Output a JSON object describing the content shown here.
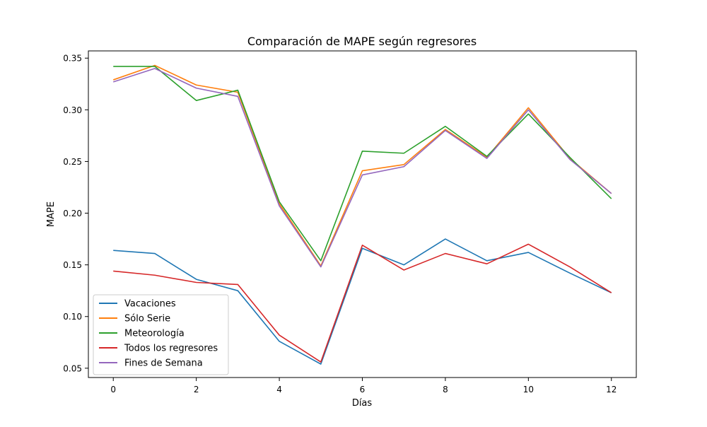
{
  "chart_data": {
    "type": "line",
    "title": "Comparación de MAPE según regresores",
    "xlabel": "Días",
    "ylabel": "MAPE",
    "xlim": [
      -0.6,
      12.6
    ],
    "ylim": [
      0.041,
      0.357
    ],
    "xticks": [
      0,
      2,
      4,
      6,
      8,
      10,
      12
    ],
    "yticks": [
      0.05,
      0.1,
      0.15,
      0.2,
      0.25,
      0.3,
      0.35
    ],
    "ytick_labels": [
      "0.05",
      "0.10",
      "0.15",
      "0.20",
      "0.25",
      "0.30",
      "0.35"
    ],
    "grid": false,
    "legend_position": "lower-left",
    "x": [
      0,
      1,
      2,
      3,
      4,
      5,
      6,
      7,
      8,
      9,
      10,
      11,
      12
    ],
    "series": [
      {
        "name": "Vacaciones",
        "color": "#1f77b4",
        "values": [
          0.164,
          0.161,
          0.136,
          0.125,
          0.076,
          0.054,
          0.166,
          0.15,
          0.175,
          0.154,
          0.162,
          0.142,
          0.123
        ]
      },
      {
        "name": "Sólo Serie",
        "color": "#ff7f0e",
        "values": [
          0.329,
          0.343,
          0.324,
          0.317,
          0.209,
          0.149,
          0.241,
          0.247,
          0.281,
          0.254,
          0.302,
          0.253,
          0.219
        ]
      },
      {
        "name": "Meteorología",
        "color": "#2ca02c",
        "values": [
          0.342,
          0.342,
          0.309,
          0.319,
          0.211,
          0.154,
          0.26,
          0.258,
          0.284,
          0.255,
          0.296,
          0.254,
          0.214
        ]
      },
      {
        "name": "Todos los regresores",
        "color": "#d62728",
        "values": [
          0.144,
          0.14,
          0.133,
          0.131,
          0.082,
          0.056,
          0.169,
          0.145,
          0.161,
          0.151,
          0.17,
          0.148,
          0.123
        ]
      },
      {
        "name": "Fines de Semana",
        "color": "#9467bd",
        "values": [
          0.327,
          0.34,
          0.321,
          0.313,
          0.207,
          0.148,
          0.237,
          0.245,
          0.28,
          0.253,
          0.3,
          0.252,
          0.219
        ]
      }
    ]
  }
}
